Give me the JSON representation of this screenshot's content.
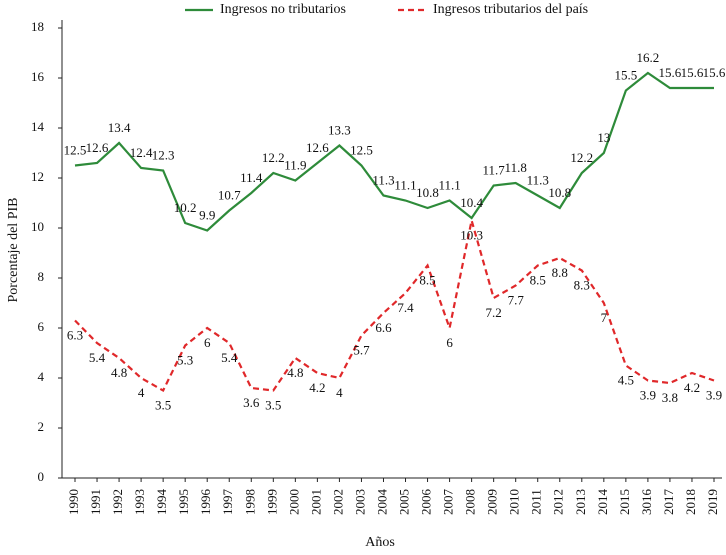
{
  "chart_data": {
    "type": "line",
    "categories": [
      "1990",
      "1991",
      "1992",
      "1993",
      "1994",
      "1995",
      "1996",
      "1997",
      "1998",
      "1999",
      "2000",
      "2001",
      "2002",
      "2003",
      "2004",
      "2005",
      "2006",
      "2007",
      "2008",
      "2009",
      "2010",
      "2011",
      "2012",
      "2013",
      "2014",
      "2015",
      "3016",
      "2017",
      "2018",
      "2019"
    ],
    "series": [
      {
        "name": "Ingresos no tributarios",
        "color": "#2e8b3a",
        "dash": false,
        "values": [
          12.5,
          12.6,
          13.4,
          12.4,
          12.3,
          10.2,
          9.9,
          10.7,
          11.4,
          12.2,
          11.9,
          12.6,
          13.3,
          12.5,
          11.3,
          11.1,
          10.8,
          11.1,
          10.4,
          11.7,
          11.8,
          11.3,
          10.8,
          12.2,
          13,
          15.5,
          16.2,
          15.6,
          15.6,
          15.6
        ]
      },
      {
        "name": "Ingresos tributarios del país",
        "color": "#e0282a",
        "dash": true,
        "values": [
          6.3,
          5.4,
          4.8,
          4,
          3.5,
          5.3,
          6,
          5.4,
          3.6,
          3.5,
          4.8,
          4.2,
          4,
          5.7,
          6.6,
          7.4,
          8.5,
          6,
          10.3,
          7.2,
          7.7,
          8.5,
          8.8,
          8.3,
          7,
          4.5,
          3.9,
          3.8,
          4.2,
          3.9
        ]
      }
    ],
    "xlabel": "Años",
    "ylabel": "Porcentaje del PIB",
    "ylim": [
      0,
      18
    ],
    "yticks": [
      0,
      2,
      4,
      6,
      8,
      10,
      12,
      14,
      16,
      18
    ],
    "grid": false,
    "legend": "top"
  }
}
